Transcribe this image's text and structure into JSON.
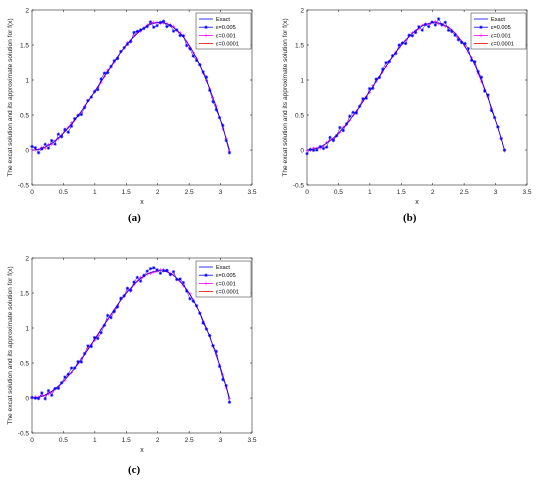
{
  "chart_data": [
    {
      "type": "line",
      "title": "",
      "xlabel": "x",
      "ylabel": "The excat solution and its approximate solution for f(x)",
      "xlim": [
        0,
        3.5
      ],
      "ylim": [
        -0.5,
        2
      ],
      "xticks": [
        "0",
        "0.5",
        "1",
        "1.5",
        "2",
        "2.5",
        "3",
        "3.5"
      ],
      "yticks": [
        "-0.5",
        "0",
        "0.5",
        "1",
        "1.5",
        "2"
      ],
      "legend_position": "top-right",
      "series": [
        {
          "name": "Exact",
          "color": "#0000ff",
          "marker": "none"
        },
        {
          "name": "ε=0.005",
          "color": "#0000ff",
          "marker": "star"
        },
        {
          "name": "ε=0.001",
          "color": "#ff00ff",
          "marker": "plus"
        },
        {
          "name": "ε=0.0001",
          "color": "#ff0000",
          "marker": "none"
        }
      ],
      "caption": "(a)"
    },
    {
      "type": "line",
      "title": "",
      "xlabel": "x",
      "ylabel": "The excat solution and its approximate solution for f(x)",
      "xlim": [
        0,
        3.5
      ],
      "ylim": [
        -0.5,
        2
      ],
      "xticks": [
        "0",
        "0.5",
        "1",
        "1.5",
        "2",
        "2.5",
        "3",
        "3.5"
      ],
      "yticks": [
        "-0.5",
        "0",
        "0.5",
        "1",
        "1.5",
        "2"
      ],
      "legend_position": "top-right",
      "series": [
        {
          "name": "Exact",
          "color": "#0000ff",
          "marker": "none"
        },
        {
          "name": "ε=0.005",
          "color": "#0000ff",
          "marker": "star"
        },
        {
          "name": "ε=0.001",
          "color": "#ff00ff",
          "marker": "plus"
        },
        {
          "name": "ε=0.0001",
          "color": "#ff0000",
          "marker": "none"
        }
      ],
      "caption": "(b)"
    },
    {
      "type": "line",
      "title": "",
      "xlabel": "x",
      "ylabel": "The excat solution and its approximate solution for f(x)",
      "xlim": [
        0,
        3.5
      ],
      "ylim": [
        -0.5,
        2
      ],
      "xticks": [
        "0",
        "0.5",
        "1",
        "1.5",
        "2",
        "2.5",
        "3",
        "3.5"
      ],
      "yticks": [
        "-0.5",
        "0",
        "0.5",
        "1",
        "1.5",
        "2"
      ],
      "legend_position": "top-right",
      "series": [
        {
          "name": "Exact",
          "color": "#0000ff",
          "marker": "none"
        },
        {
          "name": "ε=0.005",
          "color": "#0000ff",
          "marker": "star"
        },
        {
          "name": "ε=0.001",
          "color": "#ff00ff",
          "marker": "plus"
        },
        {
          "name": "ε=0.0001",
          "color": "#ff0000",
          "marker": "none"
        }
      ],
      "caption": "(c)"
    }
  ]
}
